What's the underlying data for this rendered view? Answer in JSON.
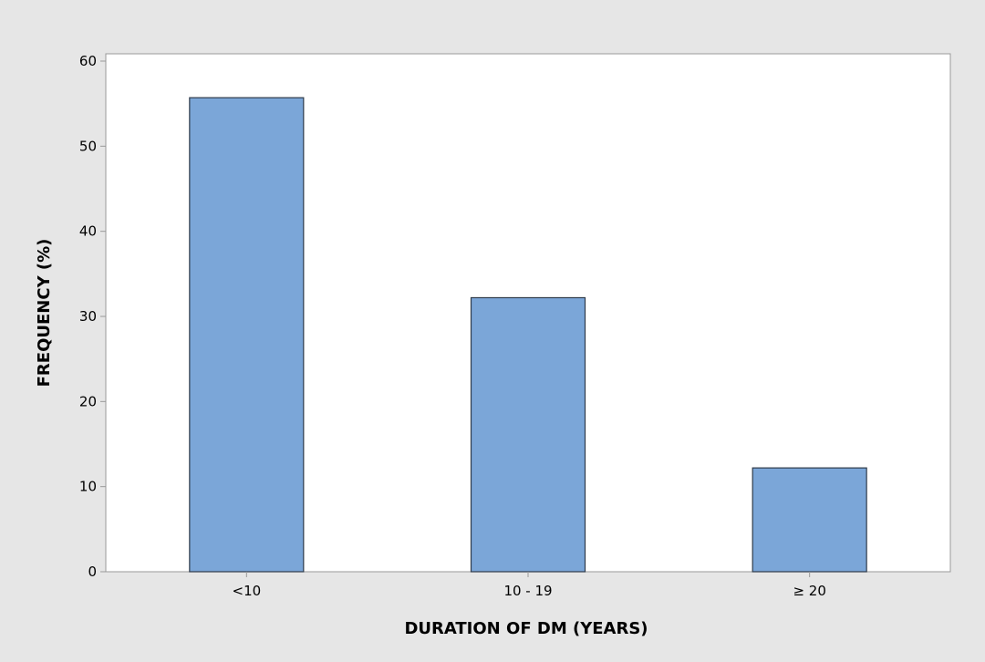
{
  "chart_data": {
    "type": "bar",
    "categories": [
      "<10",
      "10 - 19",
      "≥ 20"
    ],
    "values": [
      55.7,
      32.2,
      12.2
    ],
    "title": "",
    "xlabel": "DURATION OF DM (YEARS)",
    "ylabel": "FREQUENCY (%)",
    "ylim": [
      0,
      60
    ],
    "yticks": [
      0,
      10,
      20,
      30,
      40,
      50,
      60
    ],
    "grid": false,
    "colors": {
      "bar_fill": "#7ba6d8",
      "bar_stroke": "#2f3b4a",
      "plot_background": "#ffffff",
      "figure_background": "#e6e6e6",
      "axis": "#999999"
    }
  }
}
